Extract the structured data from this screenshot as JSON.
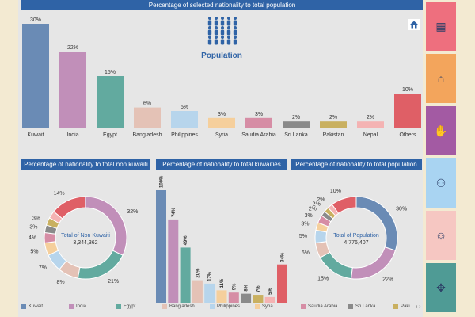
{
  "top_title": "Percentage of selected nationality to total population",
  "population_label": "Population",
  "panel_titles": {
    "non_kuwaiti": "Percentage of nationality to total non kuwaiti",
    "kuwaities": "Percentage of nationality to total kuwaities",
    "total": "Percentage of nationality to total population"
  },
  "colors": {
    "Kuwait": "#6a8bb5",
    "India": "#c18fb9",
    "Egypt": "#62aa9f",
    "Bangladesh": "#e4c2b6",
    "Philippines": "#b7d5ec",
    "Syria": "#f5cf9c",
    "Saudia Arabia": "#d68da5",
    "Sri Lanka": "#8a8a8a",
    "Pakistan": "#c9b060",
    "Nepal": "#f4b3b3",
    "Others": "#df5f66"
  },
  "chart_data": [
    {
      "type": "bar",
      "title": "Percentage of selected nationality to total population",
      "categories": [
        "Kuwait",
        "India",
        "Egypt",
        "Bangladesh",
        "Philippines",
        "Syria",
        "Saudia Arabia",
        "Sri Lanka",
        "Pakistan",
        "Nepal",
        "Others"
      ],
      "values": [
        30,
        22,
        15,
        6,
        5,
        3,
        3,
        2,
        2,
        2,
        10
      ],
      "value_labels": [
        "30%",
        "22%",
        "15%",
        "6%",
        "5%",
        "3%",
        "3%",
        "2%",
        "2%",
        "2%",
        "10%"
      ],
      "ylim": [
        0,
        30
      ]
    },
    {
      "type": "pie",
      "title": "Percentage of nationality to total non kuwaiti",
      "center_label": "Total of Non Kuwaiti",
      "center_value": "3,344,362",
      "categories": [
        "India",
        "Egypt",
        "Bangladesh",
        "Philippines",
        "Syria",
        "Saudia Arabia",
        "Sri Lanka",
        "Pakistan",
        "Nepal",
        "Others"
      ],
      "values": [
        32,
        21,
        8,
        7,
        5,
        4,
        3,
        3,
        3,
        14
      ],
      "labels": [
        "32%",
        "21%",
        "8%",
        "7%",
        "5%",
        "4%",
        "3%",
        "3%",
        "",
        "14%"
      ]
    },
    {
      "type": "bar",
      "title": "Percentage of nationality to total kuwaities",
      "categories": [
        "Kuwait",
        "India",
        "Egypt",
        "Bangladesh",
        "Philippines",
        "Syria",
        "Saudia Arabia",
        "Sri Lanka",
        "Pakistan",
        "Nepal",
        "Others"
      ],
      "values": [
        100,
        74,
        49,
        20,
        17,
        11,
        9,
        8,
        7,
        5,
        34
      ],
      "value_labels": [
        "100%",
        "74%",
        "49%",
        "20%",
        "17%",
        "11%",
        "9%",
        "8%",
        "7%",
        "5%",
        "34%"
      ],
      "ylim": [
        0,
        100
      ]
    },
    {
      "type": "pie",
      "title": "Percentage of nationality to total population",
      "center_label": "Total of Population",
      "center_value": "4,776,407",
      "categories": [
        "Kuwait",
        "India",
        "Egypt",
        "Bangladesh",
        "Philippines",
        "Syria",
        "Saudia Arabia",
        "Sri Lanka",
        "Pakistan",
        "Nepal",
        "Others"
      ],
      "values": [
        30,
        22,
        15,
        6,
        5,
        3,
        3,
        2,
        2,
        2,
        10
      ],
      "labels": [
        "30%",
        "22%",
        "15%",
        "6%",
        "5%",
        "3%",
        "3%",
        "2%",
        "2%",
        "2%",
        "10%"
      ]
    }
  ],
  "legend": [
    "Kuwait",
    "India",
    "Egypt",
    "Bangladesh",
    "Philippines",
    "Syria",
    "Saudia Arabia",
    "Sri Lanka",
    "Paki"
  ],
  "pager": "‹ ›",
  "sidebar": [
    {
      "name": "people-grid-icon",
      "color": "#ee6f7e"
    },
    {
      "name": "family-house-icon",
      "color": "#f3a55c"
    },
    {
      "name": "hands-icon",
      "color": "#a35aa3"
    },
    {
      "name": "network-people-icon",
      "color": "#a9d4f2"
    },
    {
      "name": "worker-icon",
      "color": "#f6c7c2"
    },
    {
      "name": "handshake-icon",
      "color": "#4f9b95"
    }
  ]
}
